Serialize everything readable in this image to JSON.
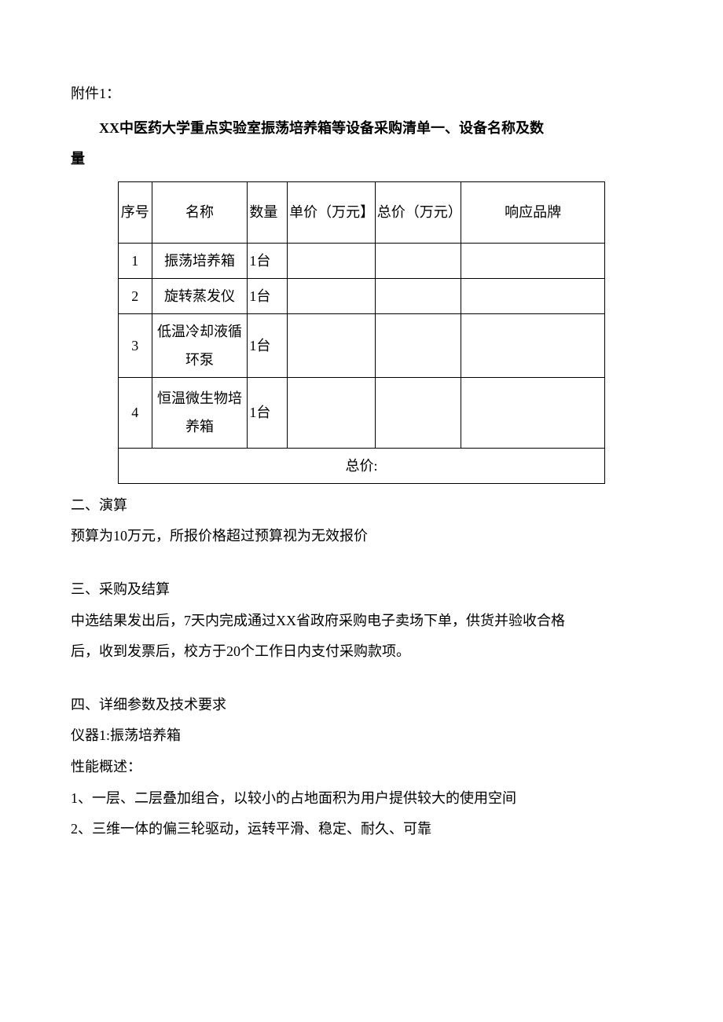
{
  "attachment_label": "附件1：",
  "title_part1": "XX中医药大学重点实验室振荡培养箱等设备采购清单一、设备名称及数",
  "title_part2": "量",
  "table": {
    "headers": {
      "seq": "序号",
      "name": "名称",
      "qty": "数量",
      "unit_price": "单价（万元】",
      "total_price": "总价（万元）",
      "brand": "响应品牌"
    },
    "rows": [
      {
        "seq": "1",
        "name": "振荡培养箱",
        "qty": "1台",
        "unit_price": "",
        "total_price": "",
        "brand": ""
      },
      {
        "seq": "2",
        "name": "旋转蒸发仪",
        "qty": "1台",
        "unit_price": "",
        "total_price": "",
        "brand": ""
      },
      {
        "seq": "3",
        "name": "低温冷却液循环泵",
        "qty": "1台",
        "unit_price": "",
        "total_price": "",
        "brand": ""
      },
      {
        "seq": "4",
        "name": "恒温微生物培养箱",
        "qty": "1台",
        "unit_price": "",
        "total_price": "",
        "brand": ""
      }
    ],
    "total_label": "总价:"
  },
  "section2": {
    "heading": "二、演算",
    "body": "预算为10万元，所报价格超过预算视为无效报价"
  },
  "section3": {
    "heading": "三、采购及结算",
    "body1": "中选结果发出后，7天内完成通过XX省政府采购电子卖场下单，供货并验收合格",
    "body2": "后，收到发票后，校方于20个工作日内支付采购款项。"
  },
  "section4": {
    "heading": "四、详细参数及技术要求",
    "instrument_label": "仪器1:振荡培养箱",
    "spec_label": "性能概述：",
    "spec1": "1、一层、二层叠加组合，以较小的占地面积为用户提供较大的使用空间",
    "spec2": "2、三维一体的偏三轮驱动，运转平滑、稳定、耐久、可靠"
  }
}
